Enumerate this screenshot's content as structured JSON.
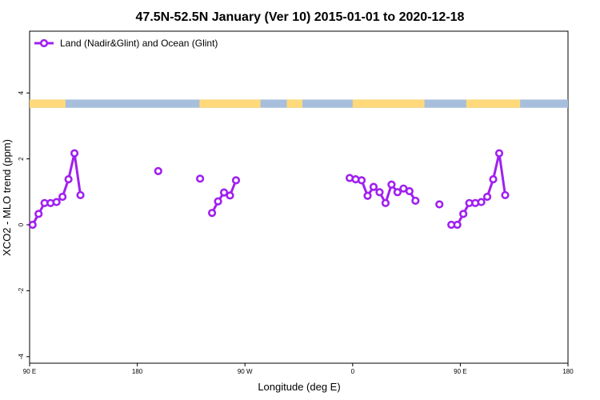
{
  "chart_data": {
    "type": "line",
    "title": "47.5N-52.5N January (Ver 10)   2015-01-01 to 2020-12-18",
    "xlabel": "Longitude (deg E)",
    "ylabel": "XCO2 - MLO trend (ppm)",
    "xlim": [
      90,
      540
    ],
    "ylim": [
      -4,
      6
    ],
    "x_ticks": [
      {
        "value": 90,
        "label": "90 E"
      },
      {
        "value": 180,
        "label": "180"
      },
      {
        "value": 270,
        "label": "90 W"
      },
      {
        "value": 360,
        "label": "0"
      },
      {
        "value": 450,
        "label": "90 E"
      },
      {
        "value": 540,
        "label": "180"
      }
    ],
    "y_ticks": [
      {
        "value": -4,
        "label": "-4"
      },
      {
        "value": -2,
        "label": "-2"
      },
      {
        "value": 0,
        "label": "0"
      },
      {
        "value": 2,
        "label": "2"
      },
      {
        "value": 4,
        "label": "4"
      }
    ],
    "legend": {
      "position": "top-left",
      "entries": [
        {
          "label": "Land (Nadir&Glint) and Ocean (Glint)",
          "color": "#a020f0"
        }
      ]
    },
    "series": [
      {
        "name": "Land (Nadir&Glint) and Ocean (Glint)",
        "color": "#a020f0",
        "segments": [
          [
            [
              92.5,
              0.0
            ],
            [
              97.5,
              0.33
            ],
            [
              102.5,
              0.66
            ],
            [
              107.5,
              0.66
            ],
            [
              112.5,
              0.69
            ],
            [
              117.5,
              0.85
            ],
            [
              122.5,
              1.38
            ],
            [
              127.5,
              2.17
            ],
            [
              132.5,
              0.9
            ]
          ],
          [
            [
              197.5,
              1.63
            ]
          ],
          [
            [
              232.5,
              1.4
            ]
          ],
          [
            [
              242.5,
              0.36
            ],
            [
              247.5,
              0.71
            ],
            [
              252.5,
              0.98
            ],
            [
              257.5,
              0.89
            ],
            [
              262.5,
              1.35
            ]
          ],
          [
            [
              357.5,
              1.42
            ],
            [
              362.5,
              1.38
            ],
            [
              367.5,
              1.35
            ],
            [
              372.5,
              0.88
            ],
            [
              377.5,
              1.15
            ],
            [
              382.5,
              0.99
            ],
            [
              387.5,
              0.66
            ],
            [
              392.5,
              1.22
            ],
            [
              397.5,
              0.99
            ],
            [
              402.5,
              1.1
            ],
            [
              407.5,
              1.02
            ],
            [
              412.5,
              0.73
            ]
          ],
          [
            [
              432.5,
              0.62
            ]
          ],
          [
            [
              442.5,
              0.0
            ],
            [
              447.5,
              0.0
            ],
            [
              452.5,
              0.33
            ],
            [
              457.5,
              0.66
            ],
            [
              462.5,
              0.66
            ],
            [
              467.5,
              0.69
            ],
            [
              472.5,
              0.85
            ],
            [
              477.5,
              1.38
            ],
            [
              482.5,
              2.17
            ],
            [
              487.5,
              0.9
            ]
          ]
        ]
      }
    ],
    "land_ocean_band": {
      "y_range": [
        3.55,
        3.8
      ],
      "land_color": "#ffd97a",
      "ocean_color": "#a7bfdc",
      "land_intervals": [
        [
          90,
          120
        ],
        [
          232,
          283
        ],
        [
          305,
          318
        ],
        [
          360,
          420
        ],
        [
          455,
          500
        ]
      ]
    },
    "grid": false
  }
}
